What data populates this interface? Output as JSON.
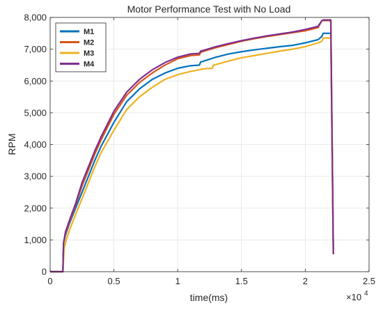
{
  "chart_data": {
    "type": "line",
    "title": "Motor Performance Test with No Load",
    "xlabel": "time(ms)",
    "ylabel": "RPM",
    "x_exponent": "×10",
    "x_exponent_power": "4",
    "xlim": [
      0,
      25000
    ],
    "ylim": [
      0,
      8000
    ],
    "xticks": [
      0,
      5000,
      10000,
      15000,
      20000,
      25000
    ],
    "xtick_labels": [
      "0",
      "0.5",
      "1",
      "1.5",
      "2",
      "2.5"
    ],
    "yticks": [
      0,
      1000,
      2000,
      3000,
      4000,
      5000,
      6000,
      7000,
      8000
    ],
    "ytick_labels": [
      "0",
      "1,000",
      "2,000",
      "3,000",
      "4,000",
      "5,000",
      "6,000",
      "7,000",
      "8,000"
    ],
    "grid": true,
    "legend_position": "top-left",
    "series": [
      {
        "name": "M1",
        "color": "#0072BD",
        "x": [
          0,
          1000,
          1050,
          1200,
          1500,
          2000,
          2500,
          3000,
          3500,
          4000,
          5000,
          6000,
          7000,
          8000,
          9000,
          10000,
          11000,
          11700,
          11800,
          12000,
          13000,
          14000,
          15000,
          16000,
          17000,
          18000,
          19000,
          20000,
          21000,
          21300,
          21400,
          21500,
          21900,
          22000,
          22200
        ],
        "y": [
          0,
          0,
          900,
          1150,
          1500,
          2000,
          2500,
          3000,
          3500,
          3950,
          4700,
          5350,
          5750,
          6050,
          6250,
          6400,
          6480,
          6500,
          6600,
          6620,
          6750,
          6850,
          6920,
          6980,
          7030,
          7080,
          7120,
          7200,
          7300,
          7400,
          7500,
          7500,
          7500,
          7500,
          550
        ]
      },
      {
        "name": "M2",
        "color": "#D95319",
        "x": [
          0,
          1000,
          1050,
          1200,
          1500,
          2000,
          2500,
          3000,
          3500,
          4000,
          5000,
          6000,
          7000,
          8000,
          9000,
          10000,
          11000,
          11700,
          11800,
          12000,
          13000,
          14000,
          15000,
          16000,
          17000,
          18000,
          19000,
          20000,
          21000,
          21300,
          21400,
          21500,
          21900,
          22000,
          22200
        ],
        "y": [
          0,
          0,
          900,
          1200,
          1550,
          2100,
          2700,
          3200,
          3700,
          4150,
          4950,
          5550,
          5950,
          6250,
          6500,
          6700,
          6800,
          6820,
          6900,
          6930,
          7050,
          7150,
          7250,
          7330,
          7400,
          7460,
          7520,
          7580,
          7680,
          7900,
          7900,
          7900,
          7900,
          7900,
          550
        ]
      },
      {
        "name": "M3",
        "color": "#EDB120",
        "x": [
          0,
          1000,
          1100,
          1300,
          1600,
          2000,
          2500,
          3000,
          3500,
          4000,
          5000,
          6000,
          7000,
          8000,
          9000,
          10000,
          11000,
          12000,
          12700,
          12800,
          13000,
          14000,
          15000,
          16000,
          17000,
          18000,
          19000,
          20000,
          21000,
          21300,
          21400,
          21500,
          21900,
          22000,
          22200
        ],
        "y": [
          0,
          0,
          750,
          1050,
          1400,
          1800,
          2300,
          2800,
          3300,
          3750,
          4450,
          5100,
          5500,
          5800,
          6050,
          6200,
          6300,
          6380,
          6400,
          6500,
          6520,
          6630,
          6730,
          6800,
          6870,
          6940,
          7000,
          7080,
          7200,
          7250,
          7350,
          7350,
          7350,
          7350,
          550
        ]
      },
      {
        "name": "M4",
        "color": "#7E2F8E",
        "x": [
          0,
          1000,
          1050,
          1200,
          1500,
          2000,
          2500,
          3000,
          3500,
          4000,
          5000,
          6000,
          7000,
          8000,
          9000,
          10000,
          11000,
          11700,
          11800,
          12000,
          13000,
          14000,
          15000,
          16000,
          17000,
          18000,
          19000,
          20000,
          21000,
          21300,
          21400,
          21500,
          21900,
          22000,
          22200
        ],
        "y": [
          0,
          0,
          900,
          1250,
          1600,
          2150,
          2800,
          3300,
          3800,
          4250,
          5050,
          5650,
          6050,
          6350,
          6580,
          6750,
          6850,
          6870,
          6940,
          6960,
          7080,
          7180,
          7270,
          7350,
          7420,
          7480,
          7540,
          7620,
          7720,
          7900,
          7920,
          7920,
          7920,
          7920,
          550
        ]
      }
    ]
  }
}
